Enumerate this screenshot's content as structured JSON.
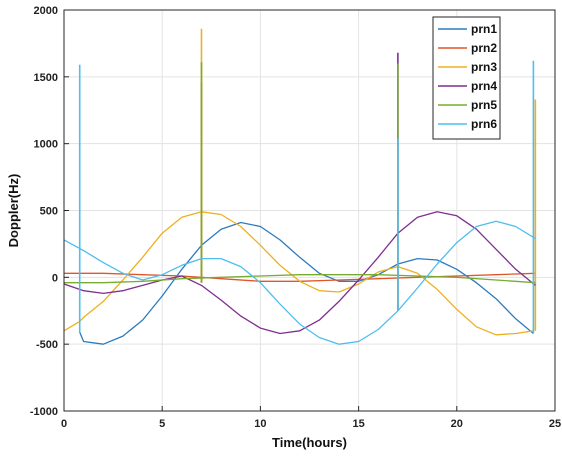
{
  "chart_data": {
    "type": "line",
    "title": "",
    "xlabel": "Time(hours)",
    "ylabel": "Doppler(Hz)",
    "xlim": [
      0,
      25
    ],
    "ylim": [
      -1000,
      2000
    ],
    "xticks": [
      0,
      5,
      10,
      15,
      20,
      25
    ],
    "yticks": [
      -1000,
      -500,
      0,
      500,
      1000,
      1500,
      2000
    ],
    "grid": true,
    "legend_position": "top-right",
    "series": [
      {
        "name": "prn1",
        "color": "#2b7bbf",
        "x": [
          0.8,
          1,
          2,
          3,
          4,
          5,
          6,
          7,
          8,
          9,
          10,
          11,
          12,
          13,
          14,
          15,
          16,
          17,
          18,
          19,
          20,
          21,
          22,
          23,
          23.9
        ],
        "y": [
          -410,
          -480,
          -500,
          -440,
          -320,
          -140,
          60,
          240,
          360,
          410,
          380,
          280,
          150,
          30,
          -30,
          -30,
          20,
          100,
          140,
          130,
          60,
          -40,
          -160,
          -310,
          -420
        ],
        "spikes": [
          [
            7.0,
            1460,
            -40
          ]
        ]
      },
      {
        "name": "prn2",
        "color": "#e0562b",
        "x": [
          0,
          2,
          4,
          6,
          8,
          10,
          12,
          14,
          16,
          18,
          20,
          22,
          24
        ],
        "y": [
          30,
          30,
          20,
          10,
          -10,
          -30,
          -30,
          -20,
          -10,
          0,
          10,
          20,
          30
        ],
        "spikes": [
          [
            7.0,
            1440,
            -40
          ]
        ]
      },
      {
        "name": "prn3",
        "color": "#edb020",
        "x": [
          0,
          0.8,
          1,
          2,
          3,
          4,
          5,
          6,
          7,
          8,
          9,
          10,
          11,
          12,
          13,
          14,
          15,
          16,
          17,
          18,
          19,
          20,
          21,
          22,
          23,
          23.9
        ],
        "y": [
          -400,
          -330,
          -300,
          -180,
          -20,
          150,
          330,
          450,
          490,
          470,
          380,
          240,
          90,
          -30,
          -100,
          -110,
          -50,
          40,
          80,
          30,
          -90,
          -240,
          -370,
          -430,
          -420,
          -400
        ],
        "spikes": [
          [
            7.0,
            1860,
            -40
          ],
          [
            24.0,
            1330,
            -400
          ]
        ]
      },
      {
        "name": "prn4",
        "color": "#7e2f8e",
        "x": [
          0,
          1,
          2,
          3,
          4,
          5,
          6,
          7,
          8,
          9,
          10,
          11,
          12,
          13,
          14,
          15,
          16,
          17,
          18,
          19,
          20,
          21,
          22,
          23,
          24
        ],
        "y": [
          -50,
          -100,
          -120,
          -100,
          -60,
          -20,
          10,
          -60,
          -170,
          -290,
          -380,
          -420,
          -400,
          -320,
          -180,
          -20,
          150,
          330,
          450,
          490,
          460,
          360,
          210,
          60,
          -60
        ],
        "spikes": [
          [
            17.0,
            1680,
            -250
          ]
        ]
      },
      {
        "name": "prn5",
        "color": "#77ac30",
        "x": [
          0,
          2,
          4,
          6,
          8,
          10,
          12,
          14,
          16,
          18,
          20,
          22,
          24
        ],
        "y": [
          -40,
          -40,
          -30,
          -10,
          0,
          10,
          20,
          20,
          20,
          10,
          0,
          -20,
          -40
        ],
        "spikes": [
          [
            7.0,
            1610,
            -40
          ],
          [
            17.0,
            1600,
            -250
          ]
        ]
      },
      {
        "name": "prn6",
        "color": "#4dbeee",
        "x": [
          0,
          1,
          2,
          3,
          4,
          5,
          6,
          7,
          8,
          9,
          10,
          11,
          12,
          13,
          14,
          15,
          16,
          17,
          18,
          19,
          20,
          21,
          22,
          23,
          24
        ],
        "y": [
          280,
          200,
          110,
          30,
          -20,
          20,
          90,
          140,
          140,
          80,
          -40,
          -200,
          -350,
          -450,
          -500,
          -480,
          -390,
          -250,
          -80,
          100,
          260,
          380,
          420,
          380,
          290
        ],
        "spikes": [
          [
            0.8,
            1590,
            -410
          ],
          [
            17.0,
            1040,
            -250
          ],
          [
            23.9,
            1620,
            -420
          ]
        ]
      }
    ]
  }
}
